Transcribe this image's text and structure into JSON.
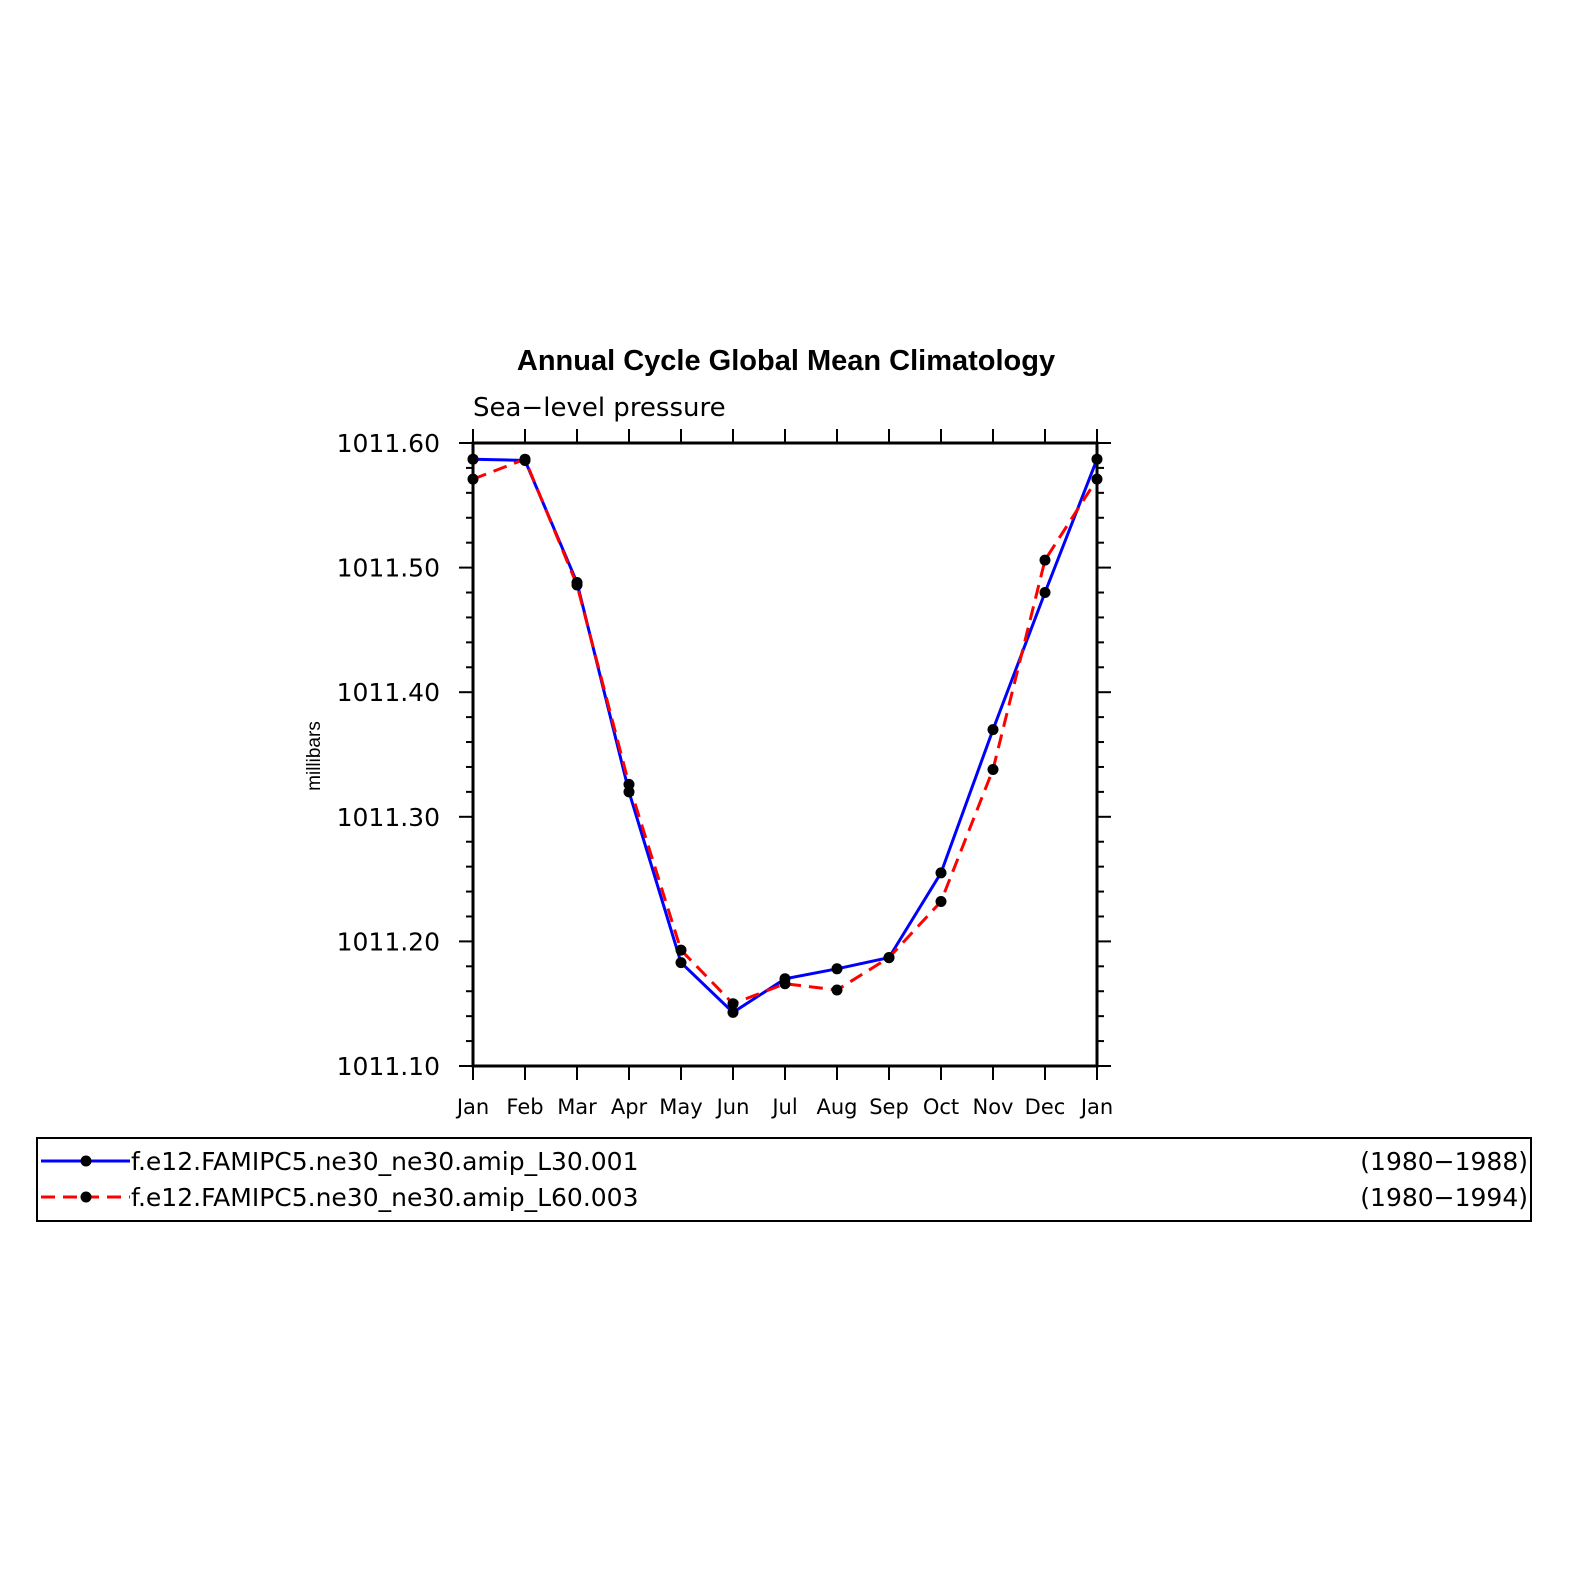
{
  "chart_data": {
    "type": "line",
    "title": "Annual Cycle Global Mean Climatology",
    "subtitle": "Sea−level pressure",
    "ylabel": "millibars",
    "xlabel": "",
    "categories": [
      "Jan",
      "Feb",
      "Mar",
      "Apr",
      "May",
      "Jun",
      "Jul",
      "Aug",
      "Sep",
      "Oct",
      "Nov",
      "Dec",
      "Jan"
    ],
    "ylim": [
      1011.1,
      1011.6
    ],
    "yticks": [
      "1011.10",
      "1011.20",
      "1011.30",
      "1011.40",
      "1011.50",
      "1011.60"
    ],
    "grid": false,
    "legend_position": "bottom",
    "series": [
      {
        "name": "f.e12.FAMIPC5.ne30_ne30.amip_L30.001",
        "period": "(1980−1988)",
        "color": "#0000ff",
        "line_style": "solid",
        "marker": "filled-circle",
        "values": [
          1011.587,
          1011.586,
          1011.488,
          1011.32,
          1011.183,
          1011.143,
          1011.17,
          1011.178,
          1011.187,
          1011.255,
          1011.37,
          1011.48,
          1011.587
        ]
      },
      {
        "name": "f.e12.FAMIPC5.ne30_ne30.amip_L60.003",
        "period": "(1980−1994)",
        "color": "#ff0000",
        "line_style": "dashed",
        "marker": "filled-circle",
        "values": [
          1011.571,
          1011.587,
          1011.486,
          1011.326,
          1011.193,
          1011.15,
          1011.166,
          1011.161,
          1011.187,
          1011.232,
          1011.338,
          1011.506,
          1011.571
        ]
      }
    ]
  }
}
